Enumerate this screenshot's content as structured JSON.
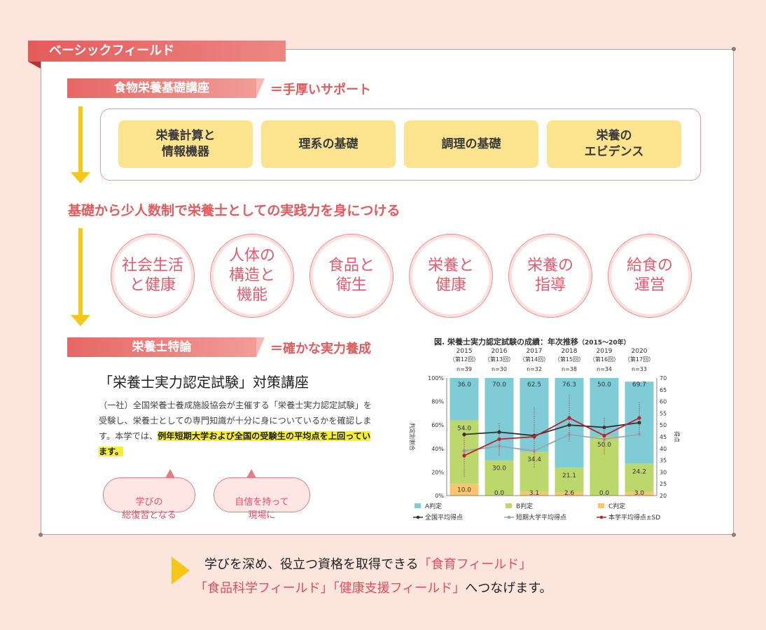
{
  "field_tab": "ベーシックフィールド",
  "section1": {
    "label": "食物栄養基礎講座",
    "note": "＝手厚いサポート"
  },
  "topics": [
    "栄養計算と\n情報機器",
    "理系の基礎",
    "調理の基礎",
    "栄養の\nエビデンス"
  ],
  "mid_heading": "基礎から少人数制で栄養士としての実践力を身につける",
  "circles": [
    "社会生活\nと健康",
    "人体の\n構造と\n機能",
    "食品と\n衛生",
    "栄養と\n健康",
    "栄養の\n指導",
    "給食の\n運営"
  ],
  "section2": {
    "label": "栄養士特論",
    "note": "＝確かな実力養成"
  },
  "course": {
    "title": "「栄養士実力認定試験」対策講座",
    "desc_plain": "（一社）全国栄養士養成施設協会が主催する「栄養士実力認定試験」を受験し、栄養士としての専門知識が十分に身についているかを確認します。本学では、",
    "desc_highlight": "例年短期大学および全国の受験生の平均点を上回っています。"
  },
  "bubbles": [
    "学びの\n総復習となる",
    "自信を持って\n現場に"
  ],
  "chart_data": {
    "type": "bar",
    "title": "図. 栄養士実力認定試験の成績：年次推移",
    "title_range": "（2015〜20年）",
    "categories": [
      "2015",
      "2016",
      "2017",
      "2018",
      "2019",
      "2020"
    ],
    "sessions": [
      "（第12回）",
      "（第13回）",
      "（第14回）",
      "（第15回）",
      "（第16回）",
      "（第17回）"
    ],
    "n": [
      "n=39",
      "n=30",
      "n=32",
      "n=38",
      "n=34",
      "n=33"
    ],
    "ylabel_left": "判定別割合",
    "ylabel_right": "得点",
    "yticks_left": [
      "0%",
      "20%",
      "40%",
      "60%",
      "80%",
      "100%"
    ],
    "yticks_right": [
      "20",
      "25",
      "30",
      "35",
      "40",
      "45",
      "50",
      "55",
      "60",
      "65",
      "70"
    ],
    "ylim_left": [
      0,
      100
    ],
    "ylim_right": [
      20,
      70
    ],
    "stack_series": [
      {
        "name": "C判定",
        "color": "#f9c66f",
        "values": [
          10.0,
          0.0,
          3.1,
          2.6,
          0.0,
          3.0
        ]
      },
      {
        "name": "B判定",
        "color": "#bcd86c",
        "values": [
          54.0,
          30.0,
          34.4,
          21.1,
          50.0,
          24.2
        ]
      },
      {
        "name": "A判定",
        "color": "#7fccd6",
        "values": [
          36.0,
          70.0,
          62.5,
          76.3,
          50.0,
          69.7
        ]
      }
    ],
    "label_texts": {
      "C判定": [
        "10.0",
        "0.0",
        "3.1",
        "2.6",
        "0.0",
        "3.0"
      ],
      "B判定": [
        "54.0",
        "30.0",
        "34.4",
        "21.1",
        "50.0",
        "24.2"
      ],
      "A判定": [
        "36.0",
        "70.0",
        "62.5",
        "76.3",
        "50.0",
        "69.7"
      ]
    },
    "line_series": [
      {
        "name": "全国平均得点",
        "color": "#333333",
        "values": [
          46,
          47,
          45.5,
          50,
          49,
          51
        ]
      },
      {
        "name": "短期大学平均得点",
        "color": "#9aa5ad",
        "values": [
          39,
          41,
          39,
          46,
          44,
          46
        ]
      },
      {
        "name": "本学平均得点±SD",
        "color": "#b8232f",
        "values": [
          37,
          44,
          45,
          53,
          45.5,
          53
        ],
        "sd": [
          9,
          7,
          13,
          10,
          8,
          7
        ]
      }
    ]
  },
  "bottom": {
    "line1_plain": "学びを深め、役立つ資格を取得できる",
    "line1_red": "「食育フィールド」",
    "line2_red": "「食品科学フィールド」「健康支援フィールド」",
    "line2_plain": "へつなげます。"
  }
}
